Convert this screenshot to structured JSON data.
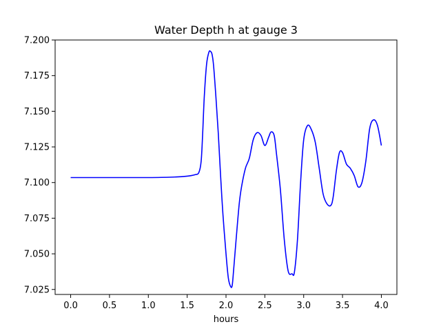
{
  "chart_data": {
    "type": "line",
    "title": "Water Depth h at gauge 3",
    "xlabel": "hours",
    "ylabel": "",
    "xlim": [
      -0.2,
      4.2
    ],
    "ylim": [
      7.0215,
      7.2
    ],
    "xticks": [
      "0.0",
      "0.5",
      "1.0",
      "1.5",
      "2.0",
      "2.5",
      "3.0",
      "3.5",
      "4.0"
    ],
    "yticks": [
      "7.025",
      "7.050",
      "7.075",
      "7.100",
      "7.125",
      "7.150",
      "7.175",
      "7.200"
    ],
    "grid": false,
    "line_color": "#0000ff",
    "series": [
      {
        "x": [
          0.0,
          0.5,
          1.0,
          1.3,
          1.5,
          1.6,
          1.65,
          1.68,
          1.7,
          1.72,
          1.75,
          1.78,
          1.8,
          1.82,
          1.84,
          1.87,
          1.9,
          1.93,
          1.96,
          2.0,
          2.03,
          2.06,
          2.08,
          2.1,
          2.13,
          2.17,
          2.2,
          2.25,
          2.3,
          2.35,
          2.4,
          2.45,
          2.5,
          2.55,
          2.58,
          2.62,
          2.65,
          2.7,
          2.75,
          2.8,
          2.85,
          2.88,
          2.92,
          2.96,
          3.0,
          3.05,
          3.1,
          3.15,
          3.2,
          3.25,
          3.3,
          3.35,
          3.38,
          3.42,
          3.46,
          3.5,
          3.55,
          3.6,
          3.65,
          3.7,
          3.75,
          3.8,
          3.85,
          3.9,
          3.95,
          4.0
        ],
        "y": [
          7.1035,
          7.1035,
          7.1035,
          7.1038,
          7.1045,
          7.1055,
          7.107,
          7.115,
          7.135,
          7.16,
          7.183,
          7.1915,
          7.192,
          7.19,
          7.182,
          7.16,
          7.135,
          7.105,
          7.078,
          7.05,
          7.033,
          7.027,
          7.028,
          7.04,
          7.06,
          7.085,
          7.097,
          7.11,
          7.117,
          7.13,
          7.135,
          7.133,
          7.126,
          7.132,
          7.1355,
          7.133,
          7.12,
          7.095,
          7.06,
          7.038,
          7.036,
          7.037,
          7.06,
          7.1,
          7.13,
          7.14,
          7.137,
          7.128,
          7.11,
          7.092,
          7.085,
          7.084,
          7.09,
          7.108,
          7.121,
          7.121,
          7.113,
          7.11,
          7.105,
          7.097,
          7.1,
          7.115,
          7.138,
          7.144,
          7.14,
          7.126
        ]
      }
    ]
  }
}
